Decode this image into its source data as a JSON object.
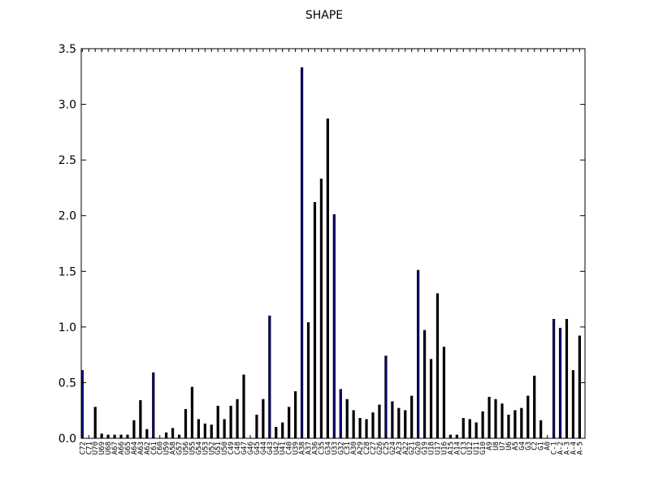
{
  "chart_data": {
    "type": "bar",
    "title": "SHAPE",
    "xlabel": "",
    "ylabel": "",
    "ylim": [
      0,
      3.5
    ],
    "yticks": [
      "0.0",
      "0.5",
      "1.0",
      "1.5",
      "2.0",
      "2.5",
      "3.0",
      "3.5"
    ],
    "grid": false,
    "legend": "none",
    "colors": {
      "highlight": "#000080",
      "default": "#000000",
      "axes": "#000000"
    },
    "categories": [
      "C72",
      "C71",
      "U70",
      "U69",
      "U68",
      "A67",
      "A66",
      "G65",
      "A64",
      "A63",
      "A62",
      "C61",
      "C60",
      "U59",
      "A58",
      "G57",
      "U56",
      "U55",
      "G54",
      "U53",
      "U52",
      "G51",
      "U50",
      "C49",
      "C48",
      "G47",
      "G46",
      "G45",
      "G44",
      "G43",
      "U42",
      "U41",
      "C40",
      "U39",
      "A38",
      "A37",
      "A36",
      "C35",
      "G34",
      "U33",
      "G32",
      "C31",
      "A30",
      "A29",
      "C28",
      "C27",
      "G26",
      "C25",
      "G24",
      "A23",
      "A22",
      "G21",
      "G20",
      "G19",
      "U18",
      "U17",
      "U16",
      "A15",
      "A14",
      "C13",
      "U12",
      "U11",
      "G10",
      "A9",
      "U8",
      "U7",
      "U6",
      "A5",
      "G4",
      "G3",
      "C2",
      "G1",
      "A0",
      "C-1",
      "A-2",
      "A-3",
      "A-4",
      "A-5"
    ],
    "values": [
      0.61,
      0,
      0.28,
      0.04,
      0.03,
      0.03,
      0.03,
      0.03,
      0.16,
      0.34,
      0.08,
      0.59,
      0,
      0.05,
      0.09,
      0.03,
      0.26,
      0.46,
      0.17,
      0.13,
      0.12,
      0.29,
      0.17,
      0.29,
      0.35,
      0.57,
      0,
      0.21,
      0.35,
      1.1,
      0.1,
      0.14,
      0.28,
      0.42,
      3.33,
      1.04,
      2.12,
      2.33,
      2.87,
      2.01,
      0.44,
      0.35,
      0.25,
      0.18,
      0.17,
      0.23,
      0.3,
      0.74,
      0.33,
      0.27,
      0.25,
      0.38,
      1.51,
      0.97,
      0.71,
      1.3,
      0.82,
      0.03,
      0.03,
      0.18,
      0.17,
      0.14,
      0.24,
      0.37,
      0.35,
      0.31,
      0.21,
      0.25,
      0.27,
      0.38,
      0.56,
      0.16,
      0,
      1.07,
      0.99,
      1.07,
      0.61,
      0.92
    ],
    "highlighted": [
      "C72",
      "C61",
      "G43",
      "A38",
      "U33",
      "G32",
      "C25",
      "G20",
      "C-1",
      "A-2"
    ]
  }
}
